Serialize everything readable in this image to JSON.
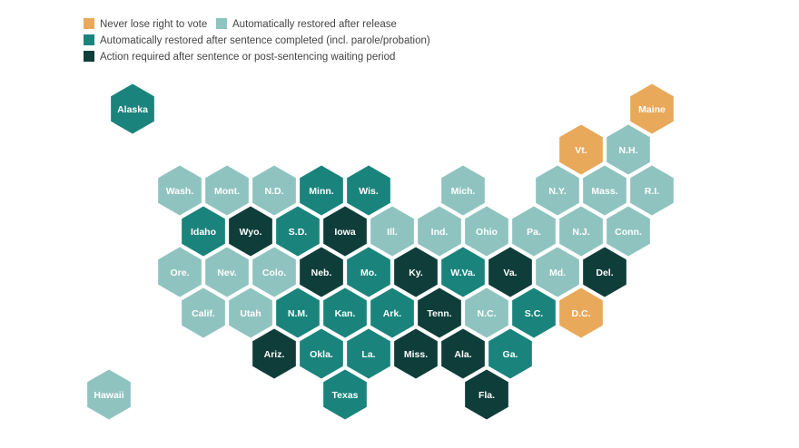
{
  "legend": [
    {
      "label": "Never lose right to vote",
      "color": "#e8a95b"
    },
    {
      "label": "Automatically restored after release",
      "color": "#8fc3c0"
    },
    {
      "label": "Automatically restored after sentence completed (incl. parole/probation)",
      "color": "#1a847c"
    },
    {
      "label": "Action required after sentence or post-sentencing waiting period",
      "color": "#0f3d3a"
    }
  ],
  "states": [
    {
      "label": "Alaska",
      "category": 2
    },
    {
      "label": "Maine",
      "category": 0
    },
    {
      "label": "Vt.",
      "category": 0
    },
    {
      "label": "N.H.",
      "category": 1
    },
    {
      "label": "Wash.",
      "category": 1
    },
    {
      "label": "Mont.",
      "category": 1
    },
    {
      "label": "N.D.",
      "category": 1
    },
    {
      "label": "Minn.",
      "category": 2
    },
    {
      "label": "Wis.",
      "category": 2
    },
    {
      "label": "Mich.",
      "category": 1
    },
    {
      "label": "N.Y.",
      "category": 1
    },
    {
      "label": "Mass.",
      "category": 1
    },
    {
      "label": "R.I.",
      "category": 1
    },
    {
      "label": "Idaho",
      "category": 2
    },
    {
      "label": "Wyo.",
      "category": 3
    },
    {
      "label": "S.D.",
      "category": 2
    },
    {
      "label": "Iowa",
      "category": 3
    },
    {
      "label": "Ill.",
      "category": 1
    },
    {
      "label": "Ind.",
      "category": 1
    },
    {
      "label": "Ohio",
      "category": 1
    },
    {
      "label": "Pa.",
      "category": 1
    },
    {
      "label": "N.J.",
      "category": 1
    },
    {
      "label": "Conn.",
      "category": 1
    },
    {
      "label": "Ore.",
      "category": 1
    },
    {
      "label": "Nev.",
      "category": 1
    },
    {
      "label": "Colo.",
      "category": 1
    },
    {
      "label": "Neb.",
      "category": 3
    },
    {
      "label": "Mo.",
      "category": 2
    },
    {
      "label": "Ky.",
      "category": 3
    },
    {
      "label": "W.Va.",
      "category": 2
    },
    {
      "label": "Va.",
      "category": 3
    },
    {
      "label": "Md.",
      "category": 1
    },
    {
      "label": "Del.",
      "category": 3
    },
    {
      "label": "Calif.",
      "category": 1
    },
    {
      "label": "Utah",
      "category": 1
    },
    {
      "label": "N.M.",
      "category": 2
    },
    {
      "label": "Kan.",
      "category": 2
    },
    {
      "label": "Ark.",
      "category": 2
    },
    {
      "label": "Tenn.",
      "category": 3
    },
    {
      "label": "N.C.",
      "category": 1
    },
    {
      "label": "S.C.",
      "category": 2
    },
    {
      "label": "D.C.",
      "category": 0
    },
    {
      "label": "Ariz.",
      "category": 3
    },
    {
      "label": "Okla.",
      "category": 2
    },
    {
      "label": "La.",
      "category": 2
    },
    {
      "label": "Miss.",
      "category": 3
    },
    {
      "label": "Ala.",
      "category": 3
    },
    {
      "label": "Ga.",
      "category": 2
    },
    {
      "label": "Hawaii",
      "category": 1
    },
    {
      "label": "Texas",
      "category": 2
    },
    {
      "label": "Fla.",
      "category": 3
    }
  ]
}
